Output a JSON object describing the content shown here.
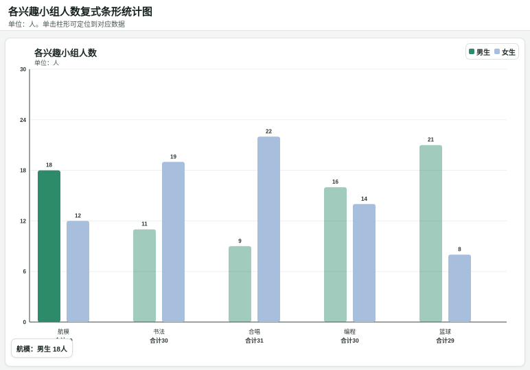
{
  "header": {
    "title": "各兴趣小组人数复式条形统计图",
    "subtitle": "单位：人。单击柱形可定位到对应数据"
  },
  "legend": {
    "male_label": "男生",
    "female_label": "女生"
  },
  "colors": {
    "male": "#2e8b6a",
    "female": "#a7bfdd"
  },
  "chart_data": {
    "type": "bar",
    "title": "各兴趣小组人数",
    "ylabel": "单位：人",
    "xlabel": "",
    "categories": [
      "航模",
      "书法",
      "合唱",
      "编程",
      "篮球"
    ],
    "series": [
      {
        "name": "男生",
        "values": [
          18,
          11,
          9,
          16,
          21
        ]
      },
      {
        "name": "女生",
        "values": [
          12,
          19,
          22,
          14,
          8
        ]
      }
    ],
    "totals": [
      "合计30",
      "合计30",
      "合计31",
      "合计30",
      "合计29"
    ],
    "ylim": [
      0,
      30
    ],
    "yticks": [
      0,
      6,
      12,
      18,
      24,
      30
    ],
    "grid": true,
    "legend_position": "top-right",
    "selected": {
      "category_index": 0,
      "series_index": 0
    }
  },
  "tooltip": {
    "text": "航模：男生 18人"
  }
}
